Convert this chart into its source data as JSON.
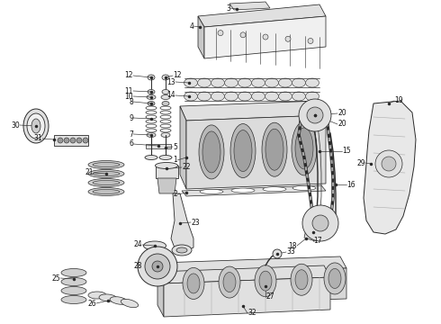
{
  "background_color": "#ffffff",
  "fig_width": 4.9,
  "fig_height": 3.6,
  "dpi": 100,
  "line_color": "#2a2a2a",
  "fill_light": "#f0f0f0",
  "fill_mid": "#e0e0e0",
  "fill_dark": "#c8c8c8",
  "label_fontsize": 5.5
}
